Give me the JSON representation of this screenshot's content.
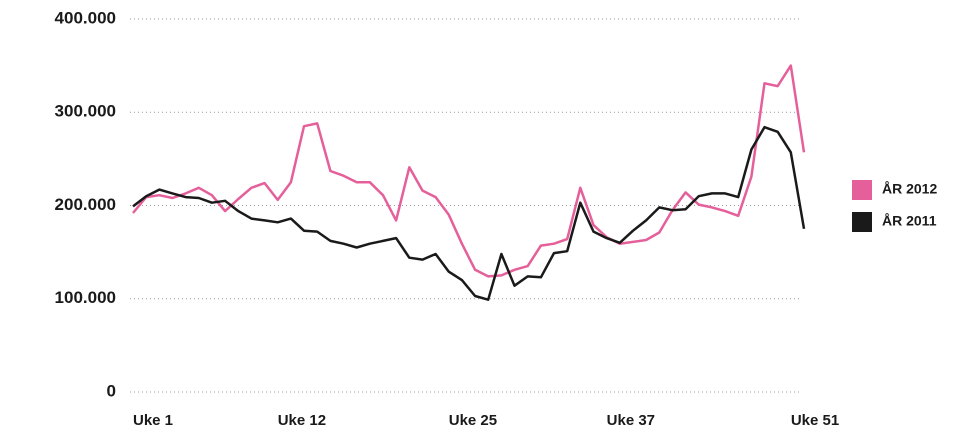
{
  "chart_data": {
    "type": "line",
    "categories": [
      "Uke 1",
      null,
      null,
      null,
      null,
      null,
      null,
      null,
      null,
      null,
      null,
      "Uke 12",
      null,
      null,
      null,
      null,
      null,
      null,
      null,
      null,
      null,
      null,
      null,
      null,
      "Uke 25",
      null,
      null,
      null,
      null,
      null,
      null,
      null,
      null,
      null,
      null,
      null,
      "Uke 37",
      null,
      null,
      null,
      null,
      null,
      null,
      null,
      null,
      null,
      null,
      null,
      null,
      null,
      "Uke 51",
      null
    ],
    "series": [
      {
        "name": "ÅR 2012",
        "color": "#e5609a",
        "values": [
          192000,
          209000,
          211000,
          208000,
          213000,
          219000,
          211000,
          194000,
          207000,
          219000,
          224000,
          206000,
          225000,
          285000,
          288000,
          237000,
          232000,
          225000,
          225000,
          211000,
          184000,
          241000,
          216000,
          209000,
          190000,
          159000,
          131000,
          124000,
          125000,
          131000,
          135000,
          157000,
          159000,
          164000,
          219000,
          179000,
          166000,
          159000,
          161000,
          163000,
          171000,
          195000,
          214000,
          201000,
          198000,
          194000,
          189000,
          231000,
          331000,
          328000,
          350000,
          257000
        ]
      },
      {
        "name": "ÅR 2011",
        "color": "#1a1a1a",
        "values": [
          199000,
          210000,
          217000,
          213000,
          209000,
          208000,
          203000,
          205000,
          194000,
          186000,
          184000,
          182000,
          186000,
          173000,
          172000,
          162000,
          159000,
          155000,
          159000,
          162000,
          165000,
          144000,
          142000,
          148000,
          129000,
          120000,
          103000,
          99000,
          148000,
          114000,
          124000,
          123000,
          149000,
          151000,
          203000,
          172000,
          165000,
          160000,
          173000,
          184000,
          198000,
          195000,
          196000,
          210000,
          213000,
          213000,
          209000,
          260000,
          284000,
          279000,
          257000,
          175000
        ]
      }
    ],
    "ylim": [
      0,
      400000
    ],
    "yticks": [
      0,
      {
        "value": 100000,
        "label": "100.000"
      },
      {
        "value": 200000,
        "label": "200.000"
      },
      {
        "value": 300000,
        "label": "300.000"
      },
      {
        "value": 400000,
        "label": "400.000"
      }
    ],
    "grid": true,
    "legend": "right"
  }
}
